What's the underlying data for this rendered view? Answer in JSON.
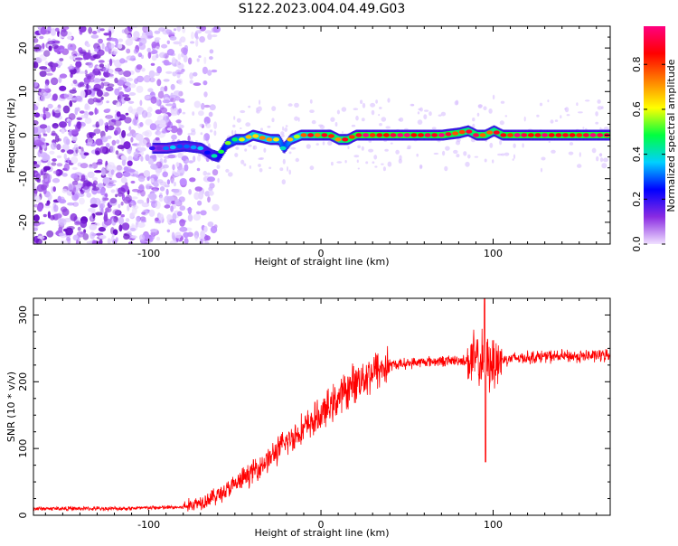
{
  "title": "S122.2023.004.04.49.G03",
  "chart_data": [
    {
      "type": "heatmap",
      "xlabel": "Height of straight line (km)",
      "ylabel": "Frequency (Hz)",
      "xlim": [
        -167,
        168
      ],
      "ylim": [
        -25,
        25
      ],
      "xticks": [
        -100,
        0,
        100
      ],
      "yticks": [
        -20,
        -10,
        0,
        10,
        20
      ],
      "colorbar": {
        "label": "Normalized spectral amplitude",
        "range": [
          0,
          0.97
        ],
        "ticks": [
          "0.0",
          "0.2",
          "0.4",
          "0.6",
          "0.8"
        ],
        "colors": [
          "#f0e0ff",
          "#8a2be2",
          "#0000ff",
          "#00d0ff",
          "#00ff40",
          "#ffff00",
          "#ff8000",
          "#ff0000",
          "#ff0080"
        ]
      },
      "ridge": {
        "x": [
          -98,
          -90,
          -80,
          -70,
          -64,
          -60,
          -55,
          -50,
          -45,
          -40,
          -35,
          -30,
          -25,
          -22,
          -18,
          -12,
          -5,
          0,
          5,
          10,
          15,
          20,
          30,
          40,
          50,
          60,
          70,
          80,
          85,
          90,
          95,
          100,
          105,
          110,
          120,
          140,
          168
        ],
        "frequency": [
          -3,
          -3,
          -2.5,
          -3,
          -4.5,
          -5,
          -2,
          -1,
          -1,
          0,
          -0.5,
          -1,
          -1,
          -3,
          -1,
          0,
          0,
          0,
          0,
          -1,
          -1,
          0,
          0,
          0,
          0,
          0,
          0,
          0.5,
          1,
          0,
          0,
          1,
          0,
          0,
          0,
          0,
          0
        ],
        "amplitude": [
          0.2,
          0.25,
          0.3,
          0.3,
          0.35,
          0.4,
          0.5,
          0.55,
          0.6,
          0.7,
          0.7,
          0.65,
          0.6,
          0.5,
          0.6,
          0.7,
          0.8,
          0.85,
          0.85,
          0.8,
          0.85,
          0.9,
          0.9,
          0.9,
          0.9,
          0.85,
          0.9,
          0.85,
          0.8,
          0.85,
          0.85,
          0.8,
          0.85,
          0.9,
          0.9,
          0.9,
          0.9
        ]
      },
      "noise_region": {
        "x_from": -167,
        "x_to": -80,
        "frequency_range": [
          -25,
          25
        ]
      }
    },
    {
      "type": "line",
      "xlabel": "Height of straight line (km)",
      "ylabel": "SNR (10 * v/v)",
      "xlim": [
        -167,
        168
      ],
      "ylim": [
        0,
        325
      ],
      "xticks": [
        -100,
        0,
        100
      ],
      "yticks": [
        0,
        100,
        200,
        300
      ],
      "color": "#ff0000",
      "trend": {
        "x": [
          -167,
          -120,
          -80,
          -70,
          -60,
          -50,
          -40,
          -30,
          -20,
          -10,
          0,
          10,
          20,
          30,
          40,
          60,
          80,
          100,
          110,
          130,
          150,
          168
        ],
        "y": [
          10,
          10,
          12,
          20,
          30,
          45,
          65,
          85,
          110,
          130,
          150,
          175,
          200,
          215,
          225,
          230,
          232,
          230,
          235,
          238,
          238,
          240
        ]
      },
      "peak": {
        "x": 95,
        "y": 325
      },
      "minimum": {
        "x": 95,
        "y": 80
      }
    }
  ]
}
